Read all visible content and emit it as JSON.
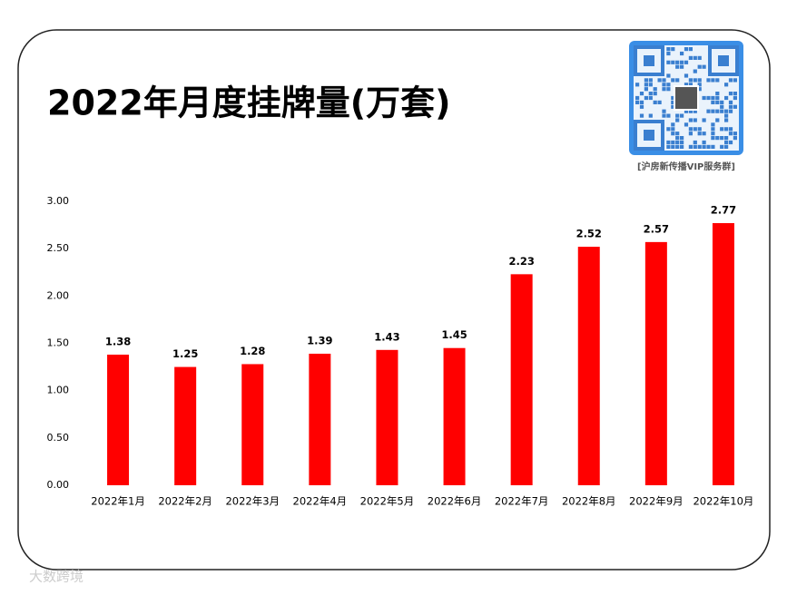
{
  "chart_data": {
    "type": "bar",
    "title": "2022年月度挂牌量(万套)",
    "categories": [
      "2022年1月",
      "2022年2月",
      "2022年3月",
      "2022年4月",
      "2022年5月",
      "2022年6月",
      "2022年7月",
      "2022年8月",
      "2022年9月",
      "2022年10月"
    ],
    "values": [
      1.38,
      1.25,
      1.28,
      1.39,
      1.43,
      1.45,
      2.23,
      2.52,
      2.57,
      2.77
    ],
    "color": "#ff0000",
    "ylim": [
      0,
      3
    ],
    "yticks": [
      {
        "value": 0,
        "label": "0.00"
      },
      {
        "value": 0.5,
        "label": "0.50"
      },
      {
        "value": 1,
        "label": "1.00"
      },
      {
        "value": 1.5,
        "label": "1.50"
      },
      {
        "value": 2,
        "label": "2.00"
      },
      {
        "value": 2.5,
        "label": "2.50"
      },
      {
        "value": 3,
        "label": "3.00"
      }
    ],
    "grid": false
  },
  "qr_caption": "[沪房新传播VIP服务群]",
  "watermark": "大数跨境"
}
